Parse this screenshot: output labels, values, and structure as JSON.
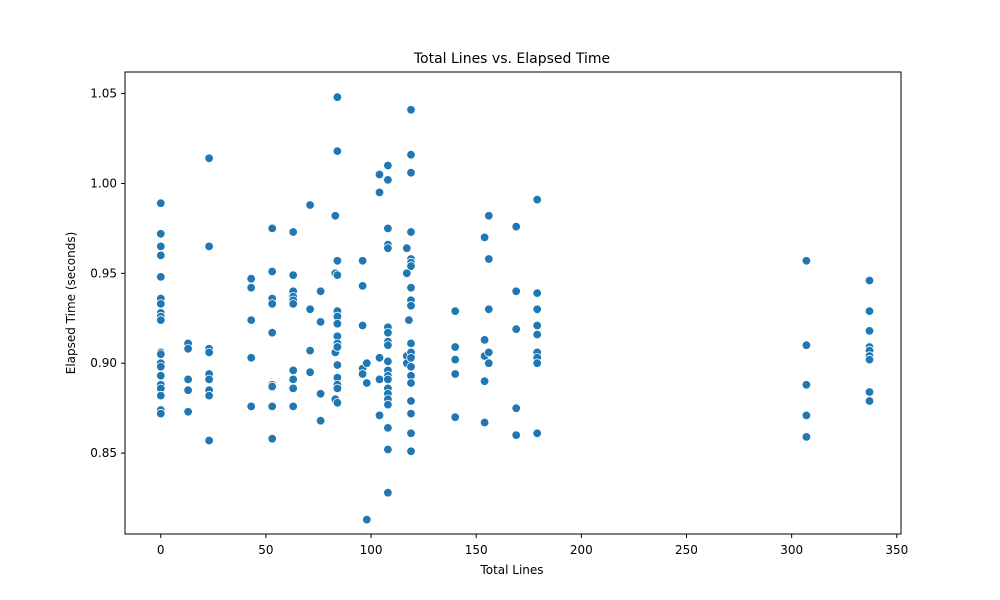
{
  "chart_data": {
    "type": "scatter",
    "title": "Total Lines vs. Elapsed Time",
    "xlabel": "Total Lines",
    "ylabel": "Elapsed Time (seconds)",
    "xlim": [
      -17,
      352
    ],
    "ylim": [
      0.805,
      1.062
    ],
    "xticks": [
      0,
      50,
      100,
      150,
      200,
      250,
      300,
      350
    ],
    "yticks": [
      0.85,
      0.9,
      0.95,
      1.0,
      1.05
    ],
    "ytick_labels": [
      "0.85",
      "0.90",
      "0.95",
      "1.00",
      "1.05"
    ],
    "grid": false,
    "marker_color": "#1f77b4",
    "marker_edge_color": "#ffffff",
    "points": [
      [
        0,
        0.989
      ],
      [
        0,
        0.972
      ],
      [
        0,
        0.965
      ],
      [
        0,
        0.96
      ],
      [
        0,
        0.948
      ],
      [
        0,
        0.936
      ],
      [
        0,
        0.933
      ],
      [
        0,
        0.928
      ],
      [
        0,
        0.926
      ],
      [
        0,
        0.924
      ],
      [
        0,
        0.906
      ],
      [
        0,
        0.905
      ],
      [
        0,
        0.9
      ],
      [
        0,
        0.898
      ],
      [
        0,
        0.893
      ],
      [
        0,
        0.888
      ],
      [
        0,
        0.886
      ],
      [
        0,
        0.882
      ],
      [
        0,
        0.874
      ],
      [
        0,
        0.872
      ],
      [
        13,
        0.911
      ],
      [
        13,
        0.908
      ],
      [
        13,
        0.891
      ],
      [
        13,
        0.885
      ],
      [
        13,
        0.873
      ],
      [
        23,
        1.014
      ],
      [
        23,
        0.965
      ],
      [
        23,
        0.908
      ],
      [
        23,
        0.906
      ],
      [
        23,
        0.894
      ],
      [
        23,
        0.891
      ],
      [
        23,
        0.885
      ],
      [
        23,
        0.882
      ],
      [
        23,
        0.857
      ],
      [
        43,
        0.947
      ],
      [
        43,
        0.942
      ],
      [
        43,
        0.924
      ],
      [
        43,
        0.903
      ],
      [
        43,
        0.876
      ],
      [
        53,
        0.975
      ],
      [
        53,
        0.951
      ],
      [
        53,
        0.936
      ],
      [
        53,
        0.933
      ],
      [
        53,
        0.917
      ],
      [
        53,
        0.888
      ],
      [
        53,
        0.887
      ],
      [
        53,
        0.876
      ],
      [
        53,
        0.858
      ],
      [
        63,
        0.973
      ],
      [
        63,
        0.949
      ],
      [
        63,
        0.94
      ],
      [
        63,
        0.937
      ],
      [
        63,
        0.935
      ],
      [
        63,
        0.933
      ],
      [
        63,
        0.896
      ],
      [
        63,
        0.891
      ],
      [
        63,
        0.886
      ],
      [
        63,
        0.876
      ],
      [
        71,
        0.988
      ],
      [
        71,
        0.93
      ],
      [
        71,
        0.907
      ],
      [
        71,
        0.895
      ],
      [
        76,
        0.94
      ],
      [
        76,
        0.923
      ],
      [
        76,
        0.883
      ],
      [
        76,
        0.868
      ],
      [
        83,
        0.982
      ],
      [
        83,
        0.95
      ],
      [
        83,
        0.906
      ],
      [
        83,
        0.88
      ],
      [
        84,
        1.048
      ],
      [
        84,
        1.018
      ],
      [
        84,
        0.957
      ],
      [
        84,
        0.949
      ],
      [
        84,
        0.929
      ],
      [
        84,
        0.926
      ],
      [
        84,
        0.922
      ],
      [
        84,
        0.915
      ],
      [
        84,
        0.911
      ],
      [
        84,
        0.909
      ],
      [
        84,
        0.899
      ],
      [
        84,
        0.892
      ],
      [
        84,
        0.888
      ],
      [
        84,
        0.886
      ],
      [
        84,
        0.878
      ],
      [
        96,
        0.957
      ],
      [
        96,
        0.943
      ],
      [
        96,
        0.921
      ],
      [
        96,
        0.897
      ],
      [
        96,
        0.894
      ],
      [
        98,
        0.9
      ],
      [
        98,
        0.889
      ],
      [
        98,
        0.813
      ],
      [
        104,
        1.005
      ],
      [
        104,
        0.995
      ],
      [
        104,
        0.903
      ],
      [
        104,
        0.891
      ],
      [
        104,
        0.871
      ],
      [
        108,
        1.01
      ],
      [
        108,
        1.002
      ],
      [
        108,
        0.975
      ],
      [
        108,
        0.966
      ],
      [
        108,
        0.964
      ],
      [
        108,
        0.92
      ],
      [
        108,
        0.917
      ],
      [
        108,
        0.912
      ],
      [
        108,
        0.91
      ],
      [
        108,
        0.901
      ],
      [
        108,
        0.896
      ],
      [
        108,
        0.893
      ],
      [
        108,
        0.891
      ],
      [
        108,
        0.886
      ],
      [
        108,
        0.883
      ],
      [
        108,
        0.88
      ],
      [
        108,
        0.877
      ],
      [
        108,
        0.864
      ],
      [
        108,
        0.852
      ],
      [
        108,
        0.828
      ],
      [
        117,
        0.964
      ],
      [
        117,
        0.95
      ],
      [
        117,
        0.904
      ],
      [
        117,
        0.9
      ],
      [
        118,
        0.924
      ],
      [
        119,
        1.041
      ],
      [
        119,
        1.016
      ],
      [
        119,
        1.006
      ],
      [
        119,
        0.973
      ],
      [
        119,
        0.958
      ],
      [
        119,
        0.956
      ],
      [
        119,
        0.954
      ],
      [
        119,
        0.942
      ],
      [
        119,
        0.935
      ],
      [
        119,
        0.932
      ],
      [
        119,
        0.911
      ],
      [
        119,
        0.906
      ],
      [
        119,
        0.903
      ],
      [
        119,
        0.898
      ],
      [
        119,
        0.893
      ],
      [
        119,
        0.889
      ],
      [
        119,
        0.879
      ],
      [
        119,
        0.872
      ],
      [
        119,
        0.861
      ],
      [
        119,
        0.851
      ],
      [
        140,
        0.929
      ],
      [
        140,
        0.909
      ],
      [
        140,
        0.902
      ],
      [
        140,
        0.894
      ],
      [
        140,
        0.87
      ],
      [
        154,
        0.97
      ],
      [
        154,
        0.913
      ],
      [
        154,
        0.904
      ],
      [
        154,
        0.89
      ],
      [
        154,
        0.867
      ],
      [
        156,
        0.982
      ],
      [
        156,
        0.958
      ],
      [
        156,
        0.93
      ],
      [
        156,
        0.906
      ],
      [
        156,
        0.9
      ],
      [
        169,
        0.976
      ],
      [
        169,
        0.94
      ],
      [
        169,
        0.919
      ],
      [
        169,
        0.875
      ],
      [
        169,
        0.86
      ],
      [
        179,
        0.991
      ],
      [
        179,
        0.939
      ],
      [
        179,
        0.93
      ],
      [
        179,
        0.921
      ],
      [
        179,
        0.916
      ],
      [
        179,
        0.906
      ],
      [
        179,
        0.903
      ],
      [
        179,
        0.9
      ],
      [
        179,
        0.861
      ],
      [
        307,
        0.957
      ],
      [
        307,
        0.91
      ],
      [
        307,
        0.888
      ],
      [
        307,
        0.871
      ],
      [
        307,
        0.859
      ],
      [
        337,
        0.946
      ],
      [
        337,
        0.929
      ],
      [
        337,
        0.918
      ],
      [
        337,
        0.909
      ],
      [
        337,
        0.907
      ],
      [
        337,
        0.904
      ],
      [
        337,
        0.902
      ],
      [
        337,
        0.884
      ],
      [
        337,
        0.879
      ]
    ]
  }
}
